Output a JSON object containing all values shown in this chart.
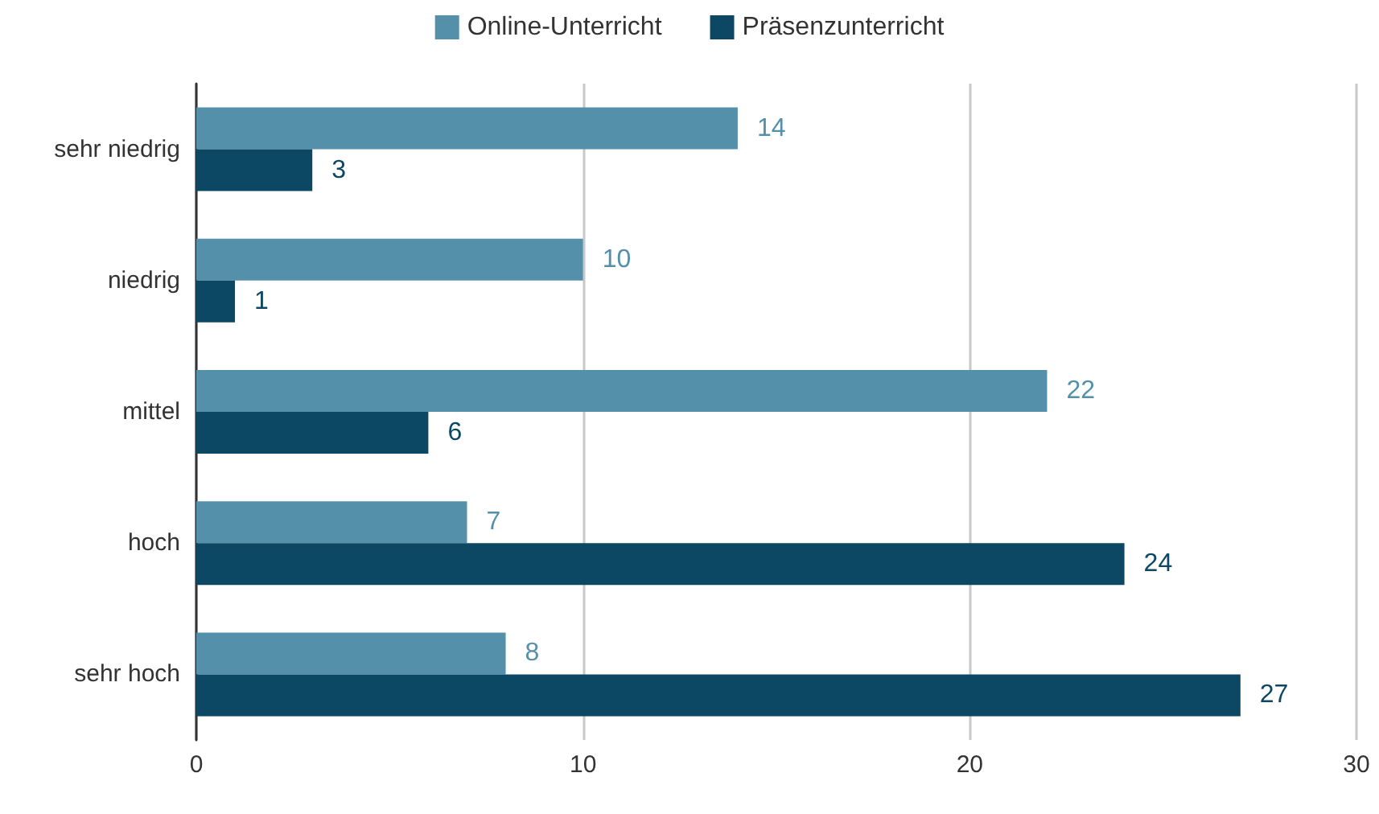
{
  "chart_data": {
    "type": "bar",
    "orientation": "horizontal",
    "categories": [
      "sehr niedrig",
      "niedrig",
      "mittel",
      "hoch",
      "sehr hoch"
    ],
    "series": [
      {
        "name": "Online-Unterricht",
        "color": "#5590ab",
        "values": [
          14,
          10,
          22,
          7,
          8
        ]
      },
      {
        "name": "Präsenzunterricht",
        "color": "#0c4864",
        "values": [
          3,
          1,
          6,
          24,
          27
        ]
      }
    ],
    "xlim": [
      0,
      30
    ],
    "xticks": [
      0,
      10,
      20,
      30
    ],
    "grid": "x",
    "legend": "top",
    "data_labels": true
  }
}
